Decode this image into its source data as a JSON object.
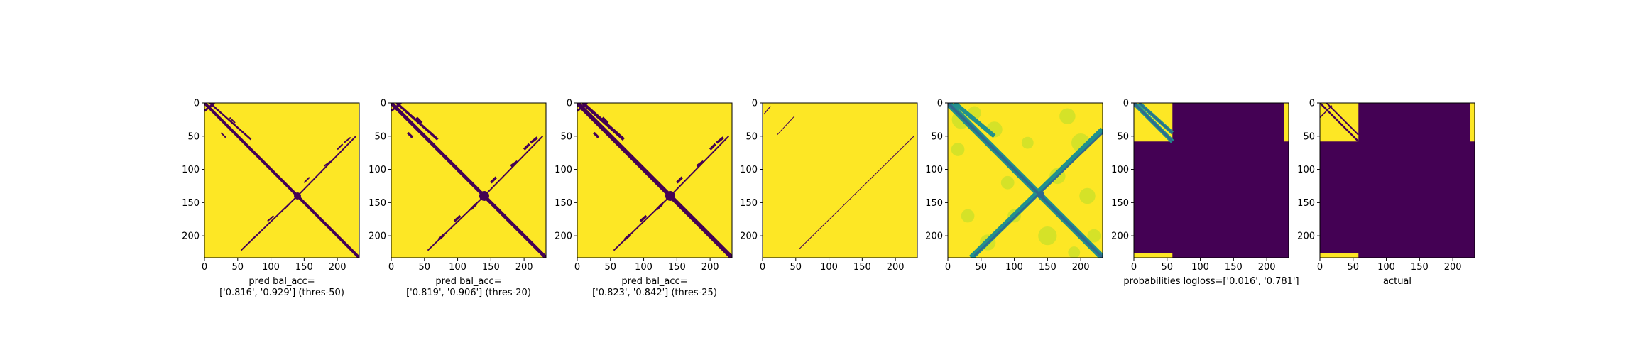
{
  "colors": {
    "yellow": "#fde725",
    "purple": "#440154",
    "mid_green": "#21918c",
    "light_green": "#b5de2b",
    "blue": "#31688e"
  },
  "chart_data": [
    {
      "type": "heatmap",
      "cmap": "viridis",
      "kind": "binary",
      "threshold": 50,
      "style": "sharp",
      "xlim": [
        0,
        233
      ],
      "ylim": [
        233,
        0
      ],
      "xticks": [
        0,
        50,
        100,
        150,
        200
      ],
      "yticks": [
        0,
        50,
        100,
        150,
        200
      ],
      "caption": [
        "pred bal_acc=",
        "['0.816', '0.929'] (thres-50)"
      ]
    },
    {
      "type": "heatmap",
      "cmap": "viridis",
      "kind": "binary",
      "threshold": 20,
      "style": "sharp",
      "xlim": [
        0,
        233
      ],
      "ylim": [
        233,
        0
      ],
      "xticks": [
        0,
        50,
        100,
        150,
        200
      ],
      "yticks": [
        0,
        50,
        100,
        150,
        200
      ],
      "caption": [
        "pred bal_acc=",
        "['0.819', '0.906'] (thres-20)"
      ]
    },
    {
      "type": "heatmap",
      "cmap": "viridis",
      "kind": "binary",
      "threshold": 25,
      "style": "sharp",
      "xlim": [
        0,
        233
      ],
      "ylim": [
        233,
        0
      ],
      "xticks": [
        0,
        50,
        100,
        150,
        200
      ],
      "yticks": [
        0,
        50,
        100,
        150,
        200
      ],
      "caption": [
        "pred bal_acc=",
        "['0.823', '0.842'] (thres-25)"
      ]
    },
    {
      "type": "heatmap",
      "cmap": "viridis",
      "kind": "binary",
      "threshold": 70,
      "style": "sparse",
      "xlim": [
        0,
        233
      ],
      "ylim": [
        233,
        0
      ],
      "xticks": [
        0,
        50,
        100,
        150,
        200
      ],
      "yticks": [
        0,
        50,
        100,
        150,
        200
      ],
      "caption": []
    },
    {
      "type": "heatmap",
      "cmap": "viridis",
      "kind": "continuous",
      "style": "soft",
      "xlim": [
        0,
        233
      ],
      "ylim": [
        233,
        0
      ],
      "xticks": [
        0,
        50,
        100,
        150,
        200
      ],
      "yticks": [
        0,
        50,
        100,
        150,
        200
      ],
      "caption": []
    },
    {
      "type": "heatmap",
      "cmap": "viridis",
      "kind": "probabilities",
      "active_extent": 58,
      "xlim": [
        0,
        233
      ],
      "ylim": [
        233,
        0
      ],
      "xticks": [
        0,
        50,
        100,
        150,
        200
      ],
      "yticks": [
        0,
        50,
        100,
        150,
        200
      ],
      "caption": [
        "probabilities logloss=['0.016', '0.781']"
      ]
    },
    {
      "type": "heatmap",
      "cmap": "viridis",
      "kind": "actual",
      "active_extent": 58,
      "xlim": [
        0,
        233
      ],
      "ylim": [
        233,
        0
      ],
      "xticks": [
        0,
        50,
        100,
        150,
        200
      ],
      "yticks": [
        0,
        50,
        100,
        150,
        200
      ],
      "caption": [
        "actual"
      ]
    }
  ]
}
